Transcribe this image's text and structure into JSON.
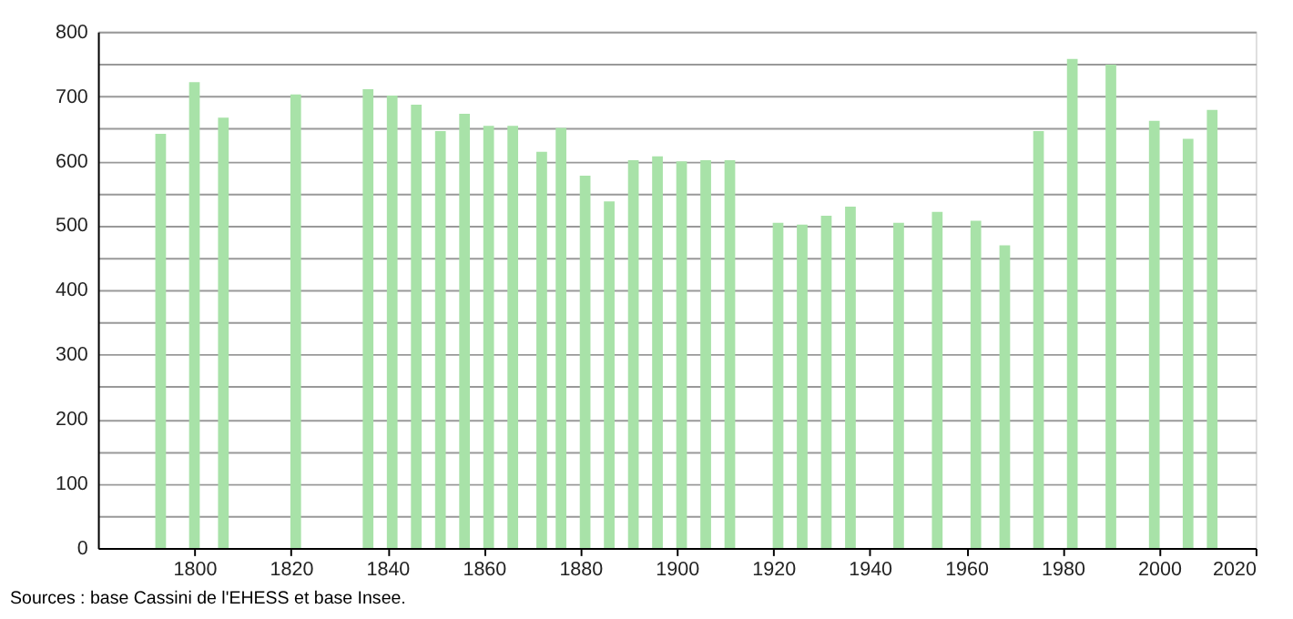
{
  "chart_data": {
    "type": "bar",
    "x": [
      1793,
      1800,
      1806,
      1821,
      1836,
      1841,
      1846,
      1851,
      1856,
      1861,
      1866,
      1872,
      1876,
      1881,
      1886,
      1891,
      1896,
      1901,
      1906,
      1911,
      1921,
      1926,
      1931,
      1936,
      1946,
      1954,
      1962,
      1968,
      1975,
      1982,
      1990,
      1999,
      2006,
      2011
    ],
    "values": [
      642,
      722,
      667,
      703,
      711,
      701,
      687,
      646,
      673,
      654,
      654,
      614,
      651,
      577,
      537,
      601,
      607,
      599,
      601,
      601,
      504,
      501,
      515,
      529,
      504,
      521,
      507,
      469,
      646,
      758,
      749,
      662,
      634,
      679
    ],
    "color": "#a8e2a8",
    "xlim": [
      1780,
      2020
    ],
    "xticks": [
      1800,
      1820,
      1840,
      1860,
      1880,
      1900,
      1920,
      1940,
      1960,
      1980,
      2000,
      2020
    ],
    "ylim": [
      0,
      800
    ],
    "yticks": [
      0,
      {
        "value": 50,
        "label": null
      },
      100,
      {
        "value": 150,
        "label": null
      },
      200,
      {
        "value": 250,
        "label": null
      },
      300,
      {
        "value": 350,
        "label": null
      },
      400,
      {
        "value": 450,
        "label": null
      },
      500,
      {
        "value": 550,
        "label": null
      },
      600,
      {
        "value": 650,
        "label": null
      },
      700,
      {
        "value": 750,
        "label": null
      },
      800
    ],
    "grid": "y",
    "annotations": [
      "Sources : base Cassini de l'EHESS et base Insee."
    ]
  }
}
